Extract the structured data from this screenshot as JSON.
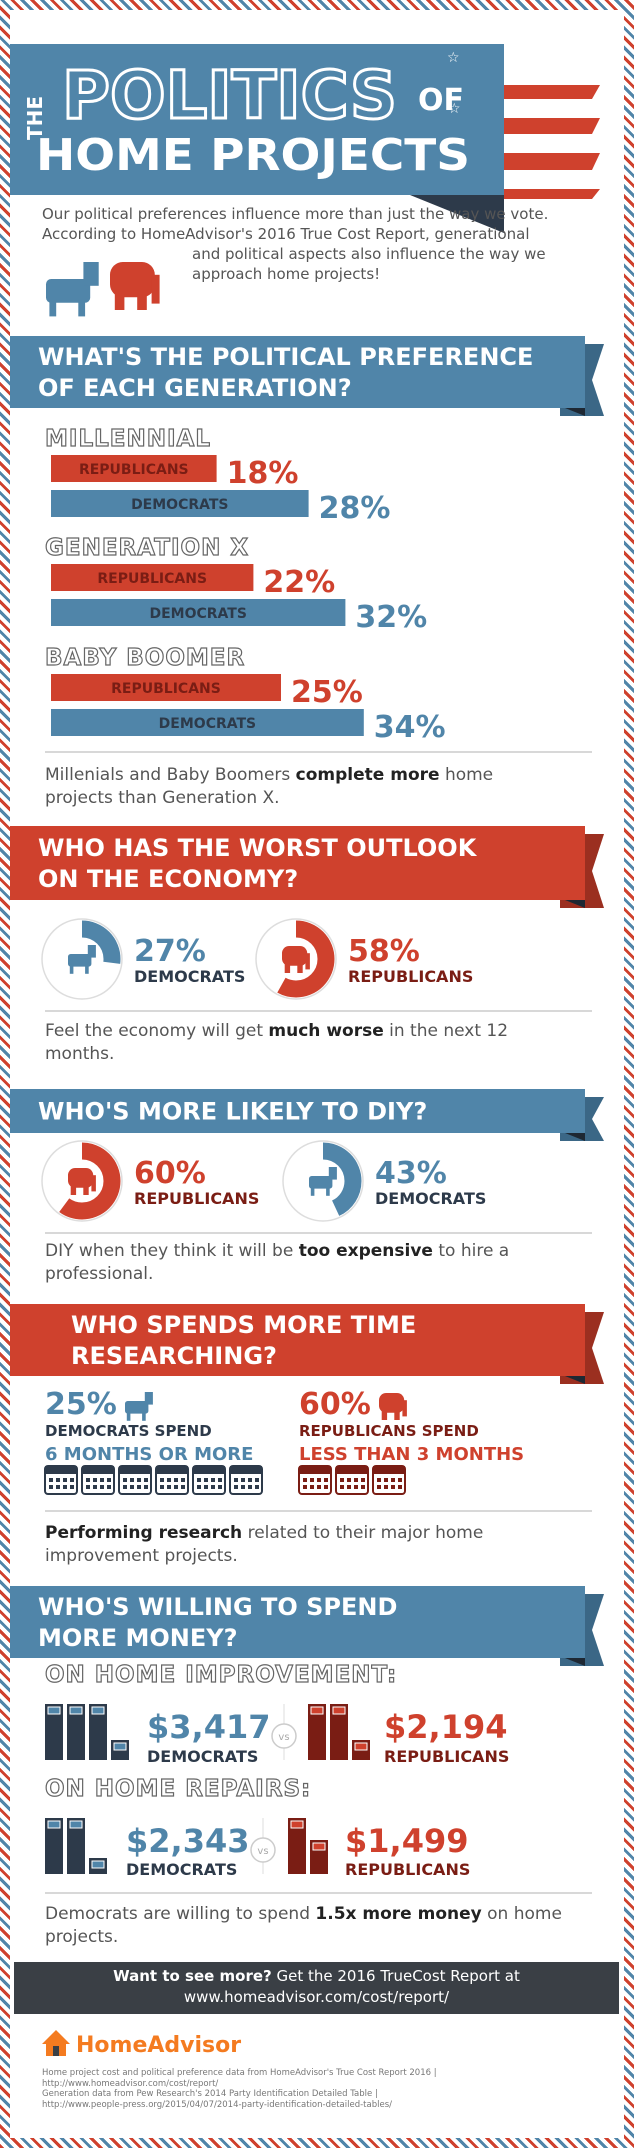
{
  "header": {
    "title_side": "THE",
    "title_main": "POLITICS",
    "title_of": "OF",
    "title_sub": "HOME PROJECTS",
    "intro": "Our political preferences influence more than just the way we vote. According to HomeAdvisor's 2016 True Cost Report, generational and political aspects also influence the way we approach home projects!"
  },
  "generation": {
    "heading": [
      "WHAT'S THE POLITICAL PREFERENCE",
      "OF EACH GENERATION?"
    ],
    "groups": [
      {
        "name": "MILLENNIAL",
        "bars": [
          {
            "label": "REPUBLICANS",
            "value": 18,
            "value_label": "18%",
            "color": "#cf412d",
            "text_color": "#7a1d14"
          },
          {
            "label": "DEMOCRATS",
            "value": 28,
            "value_label": "28%",
            "color": "#5085a9",
            "text_color": "#2d3a4a"
          }
        ]
      },
      {
        "name": "GENERATION X",
        "bars": [
          {
            "label": "REPUBLICANS",
            "value": 22,
            "value_label": "22%",
            "color": "#cf412d",
            "text_color": "#7a1d14"
          },
          {
            "label": "DEMOCRATS",
            "value": 32,
            "value_label": "32%",
            "color": "#5085a9",
            "text_color": "#2d3a4a"
          }
        ]
      },
      {
        "name": "BABY BOOMER",
        "bars": [
          {
            "label": "REPUBLICANS",
            "value": 25,
            "value_label": "25%",
            "color": "#cf412d",
            "text_color": "#7a1d14"
          },
          {
            "label": "DEMOCRATS",
            "value": 34,
            "value_label": "34%",
            "color": "#5085a9",
            "text_color": "#2d3a4a"
          }
        ]
      }
    ],
    "note": [
      "Millenials and Baby Boomers ",
      "complete more",
      " home projects than Generation X."
    ]
  },
  "economy": {
    "heading": [
      "WHO HAS THE WORST OUTLOOK",
      "ON THE ECONOMY?"
    ],
    "items": [
      {
        "party": "DEMOCRATS",
        "value": 27,
        "value_label": "27%",
        "color": "#5085a9",
        "text_color": "#2d3a4a"
      },
      {
        "party": "REPUBLICANS",
        "value": 58,
        "value_label": "58%",
        "color": "#cf412d",
        "text_color": "#7a1d14"
      }
    ],
    "note": [
      "Feel the economy will get ",
      "much worse",
      " in the next 12 months."
    ]
  },
  "diy": {
    "heading": [
      "WHO'S MORE LIKELY TO DIY?"
    ],
    "items": [
      {
        "party": "REPUBLICANS",
        "value": 60,
        "value_label": "60%",
        "color": "#cf412d",
        "text_color": "#7a1d14"
      },
      {
        "party": "DEMOCRATS",
        "value": 43,
        "value_label": "43%",
        "color": "#5085a9",
        "text_color": "#2d3a4a"
      }
    ],
    "note": [
      "DIY when they think it will be ",
      "too expensive",
      " to hire a professional."
    ]
  },
  "research": {
    "heading": [
      "WHO SPENDS MORE TIME",
      "RESEARCHING?"
    ],
    "items": [
      {
        "share": "25%",
        "line1": "DEMOCRATS SPEND",
        "line2": "6 MONTHS OR MORE",
        "color": "#5085a9",
        "text_color": "#2d3a4a"
      },
      {
        "share": "60%",
        "line1": "REPUBLICANS SPEND",
        "line2": "LESS THAN 3 MONTHS",
        "color": "#cf412d",
        "text_color": "#7a1d14"
      }
    ],
    "note": [
      "",
      "Performing research",
      " related to their major home improvement projects."
    ]
  },
  "money": {
    "heading": [
      "WHO'S WILLING TO SPEND",
      "MORE MONEY?"
    ],
    "rows": [
      {
        "label": "ON HOME IMPROVEMENT:",
        "vs": "vs",
        "items": [
          {
            "amount": "$3,417",
            "party": "DEMOCRATS"
          },
          {
            "amount": "$2,194",
            "party": "REPUBLICANS"
          }
        ]
      },
      {
        "label": "ON HOME REPAIRS:",
        "vs": "vs",
        "items": [
          {
            "amount": "$2,343",
            "party": "DEMOCRATS"
          },
          {
            "amount": "$1,499",
            "party": "REPUBLICANS"
          }
        ]
      }
    ],
    "note": [
      "Democrats are willing to spend ",
      "1.5x more money",
      " on home projects."
    ]
  },
  "footer": {
    "cta": [
      "Want to see more?",
      " Get the 2016 TrueCost Report at",
      "www.homeadvisor.com/cost/report/"
    ],
    "logo": "HomeAdvisor",
    "sources": [
      "Home project cost and political preference data from HomeAdvisor's True Cost Report 2016 |",
      "http://www.homeadvisor.com/cost/report/",
      "Generation data from Pew Research's 2014 Party Identification Detailed Table |",
      "http://www.people-press.org/2015/04/07/2014-party-identification-detailed-tables/"
    ]
  }
}
